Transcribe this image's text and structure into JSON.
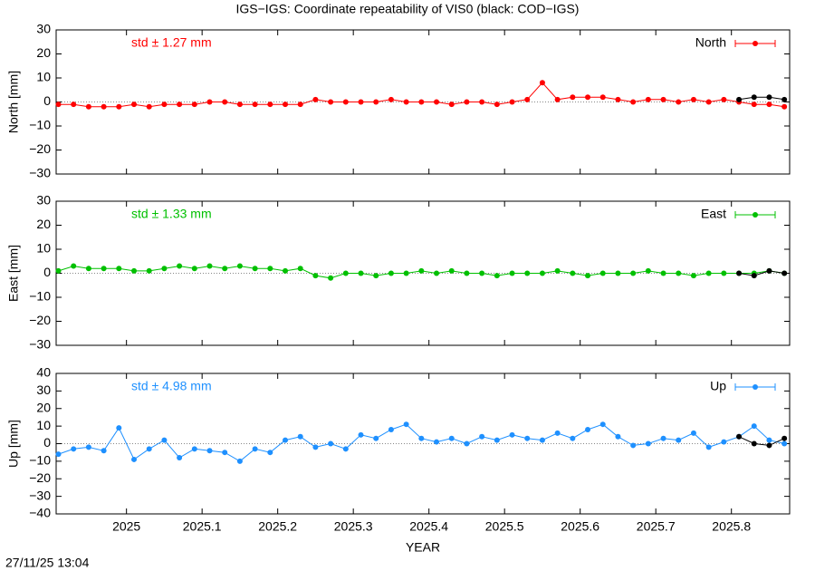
{
  "title": "IGS−IGS: Coordinate repeatability of VIS0 (black: COD−IGS)",
  "timestamp": "27/11/25 13:04",
  "chart_data": [
    {
      "type": "line",
      "ylabel": "North [mm]",
      "annotation": "std ± 1.27 mm",
      "xlim": [
        2024.907,
        2025.877
      ],
      "ylim": [
        -30,
        30
      ],
      "yticks": [
        {
          "value": -30,
          "label": "−30"
        },
        {
          "value": -20,
          "label": "−20"
        },
        {
          "value": -10,
          "label": "−10"
        },
        0,
        10,
        20,
        30
      ],
      "series": [
        {
          "name": "North",
          "color": "#ff0000",
          "x": [
            2024.91,
            2024.93,
            2024.95,
            2024.97,
            2024.99,
            2025.01,
            2025.03,
            2025.05,
            2025.07,
            2025.09,
            2025.11,
            2025.13,
            2025.15,
            2025.17,
            2025.19,
            2025.21,
            2025.23,
            2025.25,
            2025.27,
            2025.29,
            2025.31,
            2025.33,
            2025.35,
            2025.37,
            2025.39,
            2025.41,
            2025.43,
            2025.45,
            2025.47,
            2025.49,
            2025.51,
            2025.53,
            2025.55,
            2025.57,
            2025.59,
            2025.61,
            2025.63,
            2025.65,
            2025.67,
            2025.69,
            2025.71,
            2025.73,
            2025.75,
            2025.77,
            2025.79,
            2025.81,
            2025.83,
            2025.85,
            2025.87
          ],
          "values": [
            -1,
            -1,
            -2,
            -2,
            -2,
            -1,
            -2,
            -1,
            -1,
            -1,
            0,
            0,
            -1,
            -1,
            -1,
            -1,
            -1,
            1,
            0,
            0,
            0,
            0,
            1,
            0,
            0,
            0,
            -1,
            0,
            0,
            -1,
            0,
            1,
            8,
            1,
            2,
            2,
            2,
            1,
            0,
            1,
            1,
            0,
            1,
            0,
            1,
            0,
            -1,
            -1,
            -2
          ]
        },
        {
          "color": "#000000",
          "x": [
            2025.81,
            2025.83,
            2025.85,
            2025.87
          ],
          "values": [
            1,
            2,
            2,
            1
          ]
        }
      ]
    },
    {
      "type": "line",
      "ylabel": "East [mm]",
      "annotation": "std ± 1.33 mm",
      "xlim": [
        2024.907,
        2025.877
      ],
      "ylim": [
        -30,
        30
      ],
      "yticks": [
        {
          "value": -30,
          "label": "−30"
        },
        {
          "value": -20,
          "label": "−20"
        },
        {
          "value": -10,
          "label": "−10"
        },
        0,
        10,
        20,
        30
      ],
      "series": [
        {
          "name": "East",
          "color": "#00c000",
          "x": [
            2024.91,
            2024.93,
            2024.95,
            2024.97,
            2024.99,
            2025.01,
            2025.03,
            2025.05,
            2025.07,
            2025.09,
            2025.11,
            2025.13,
            2025.15,
            2025.17,
            2025.19,
            2025.21,
            2025.23,
            2025.25,
            2025.27,
            2025.29,
            2025.31,
            2025.33,
            2025.35,
            2025.37,
            2025.39,
            2025.41,
            2025.43,
            2025.45,
            2025.47,
            2025.49,
            2025.51,
            2025.53,
            2025.55,
            2025.57,
            2025.59,
            2025.61,
            2025.63,
            2025.65,
            2025.67,
            2025.69,
            2025.71,
            2025.73,
            2025.75,
            2025.77,
            2025.79,
            2025.81,
            2025.83,
            2025.85,
            2025.87
          ],
          "values": [
            1,
            3,
            2,
            2,
            2,
            1,
            1,
            2,
            3,
            2,
            3,
            2,
            3,
            2,
            2,
            1,
            2,
            -1,
            -2,
            0,
            0,
            -1,
            0,
            0,
            1,
            0,
            1,
            0,
            0,
            -1,
            0,
            0,
            0,
            1,
            0,
            -1,
            0,
            0,
            0,
            1,
            0,
            0,
            -1,
            0,
            0,
            0,
            0,
            1,
            0
          ]
        },
        {
          "color": "#000000",
          "x": [
            2025.81,
            2025.83,
            2025.85,
            2025.87
          ],
          "values": [
            0,
            -1,
            1,
            0
          ]
        }
      ]
    },
    {
      "type": "line",
      "ylabel": "Up [mm]",
      "annotation": "std ± 4.98 mm",
      "xlabel": "YEAR",
      "xlim": [
        2024.907,
        2025.877
      ],
      "ylim": [
        -40,
        40
      ],
      "xticks": [
        2025,
        2025.1,
        2025.2,
        2025.3,
        2025.4,
        2025.5,
        2025.6,
        2025.7,
        2025.8
      ],
      "yticks": [
        {
          "value": -40,
          "label": "−40"
        },
        {
          "value": -30,
          "label": "−30"
        },
        {
          "value": -20,
          "label": "−20"
        },
        {
          "value": -10,
          "label": "−10"
        },
        0,
        10,
        20,
        30,
        40
      ],
      "series": [
        {
          "name": "Up",
          "color": "#1e90ff",
          "x": [
            2024.91,
            2024.93,
            2024.95,
            2024.97,
            2024.99,
            2025.01,
            2025.03,
            2025.05,
            2025.07,
            2025.09,
            2025.11,
            2025.13,
            2025.15,
            2025.17,
            2025.19,
            2025.21,
            2025.23,
            2025.25,
            2025.27,
            2025.29,
            2025.31,
            2025.33,
            2025.35,
            2025.37,
            2025.39,
            2025.41,
            2025.43,
            2025.45,
            2025.47,
            2025.49,
            2025.51,
            2025.53,
            2025.55,
            2025.57,
            2025.59,
            2025.61,
            2025.63,
            2025.65,
            2025.67,
            2025.69,
            2025.71,
            2025.73,
            2025.75,
            2025.77,
            2025.79,
            2025.81,
            2025.83,
            2025.85,
            2025.87
          ],
          "values": [
            -6,
            -3,
            -2,
            -4,
            9,
            -9,
            -3,
            2,
            -8,
            -3,
            -4,
            -5,
            -10,
            -3,
            -5,
            2,
            4,
            -2,
            0,
            -3,
            5,
            3,
            8,
            11,
            3,
            1,
            3,
            0,
            4,
            2,
            5,
            3,
            2,
            6,
            3,
            8,
            11,
            4,
            -1,
            0,
            3,
            2,
            6,
            -2,
            1,
            4,
            10,
            2,
            0
          ]
        },
        {
          "color": "#000000",
          "x": [
            2025.81,
            2025.83,
            2025.85,
            2025.87
          ],
          "values": [
            4,
            0,
            -1,
            3
          ]
        }
      ]
    }
  ]
}
